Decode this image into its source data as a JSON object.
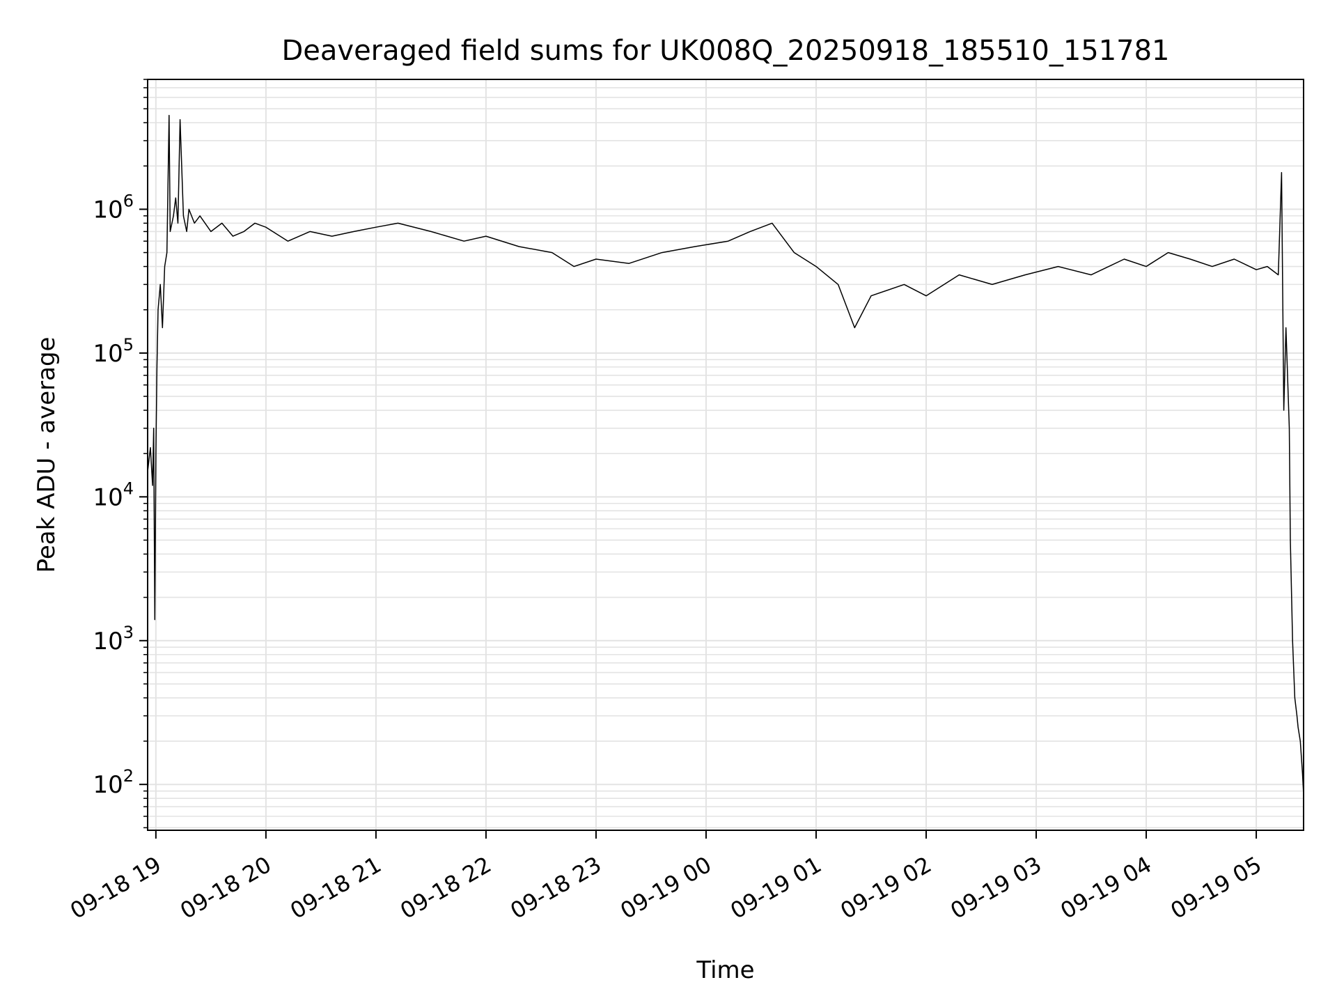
{
  "chart_data": {
    "type": "line",
    "title": "Deaveraged field sums for UK008Q_20250918_185510_151781",
    "xlabel": "Time",
    "ylabel": "Peak ADU - average",
    "yscale": "log",
    "ylim": [
      48,
      8000000
    ],
    "xlim_hours": [
      -0.075,
      10.43
    ],
    "grid": true,
    "x_tick_labels": [
      "09-18 19",
      "09-18 20",
      "09-18 21",
      "09-18 22",
      "09-18 23",
      "09-19 00",
      "09-19 01",
      "09-19 02",
      "09-19 03",
      "09-19 04",
      "09-19 05"
    ],
    "x_tick_hours": [
      0,
      1,
      2,
      3,
      4,
      5,
      6,
      7,
      8,
      9,
      10
    ],
    "y_ticks": [
      {
        "base": "10",
        "exp": "2",
        "value": 100
      },
      {
        "base": "10",
        "exp": "3",
        "value": 1000
      },
      {
        "base": "10",
        "exp": "4",
        "value": 10000
      },
      {
        "base": "10",
        "exp": "5",
        "value": 100000
      },
      {
        "base": "10",
        "exp": "6",
        "value": 1000000
      }
    ],
    "series": [
      {
        "name": "Peak ADU - average",
        "color": "#000000",
        "x_hours": [
          -0.075,
          -0.05,
          -0.03,
          -0.02,
          -0.01,
          0.0,
          0.01,
          0.02,
          0.04,
          0.06,
          0.08,
          0.1,
          0.12,
          0.13,
          0.16,
          0.18,
          0.2,
          0.22,
          0.25,
          0.28,
          0.3,
          0.35,
          0.4,
          0.5,
          0.6,
          0.7,
          0.8,
          0.9,
          1.0,
          1.2,
          1.4,
          1.6,
          1.8,
          2.0,
          2.2,
          2.5,
          2.8,
          3.0,
          3.3,
          3.6,
          3.8,
          4.0,
          4.3,
          4.6,
          4.9,
          5.2,
          5.4,
          5.6,
          5.8,
          6.0,
          6.2,
          6.35,
          6.5,
          6.8,
          7.0,
          7.3,
          7.6,
          7.9,
          8.2,
          8.5,
          8.8,
          9.0,
          9.2,
          9.4,
          9.6,
          9.8,
          10.0,
          10.1,
          10.2,
          10.23,
          10.25,
          10.27,
          10.3,
          10.31,
          10.33,
          10.35,
          10.37,
          10.38,
          10.4,
          10.42,
          10.43
        ],
        "values": [
          15000,
          22000,
          12000,
          30000,
          1400,
          20000,
          80000,
          200000,
          300000,
          150000,
          400000,
          500000,
          4500000,
          700000,
          900000,
          1200000,
          800000,
          4200000,
          900000,
          700000,
          1000000,
          800000,
          900000,
          700000,
          800000,
          650000,
          700000,
          800000,
          750000,
          600000,
          700000,
          650000,
          700000,
          750000,
          800000,
          700000,
          600000,
          650000,
          550000,
          500000,
          400000,
          450000,
          420000,
          500000,
          550000,
          600000,
          700000,
          800000,
          500000,
          400000,
          300000,
          150000,
          250000,
          300000,
          250000,
          350000,
          300000,
          350000,
          400000,
          350000,
          450000,
          400000,
          500000,
          450000,
          400000,
          450000,
          380000,
          400000,
          350000,
          1800000,
          40000,
          150000,
          30000,
          5000,
          1000,
          400,
          300,
          250,
          200,
          120,
          85
        ]
      }
    ]
  }
}
